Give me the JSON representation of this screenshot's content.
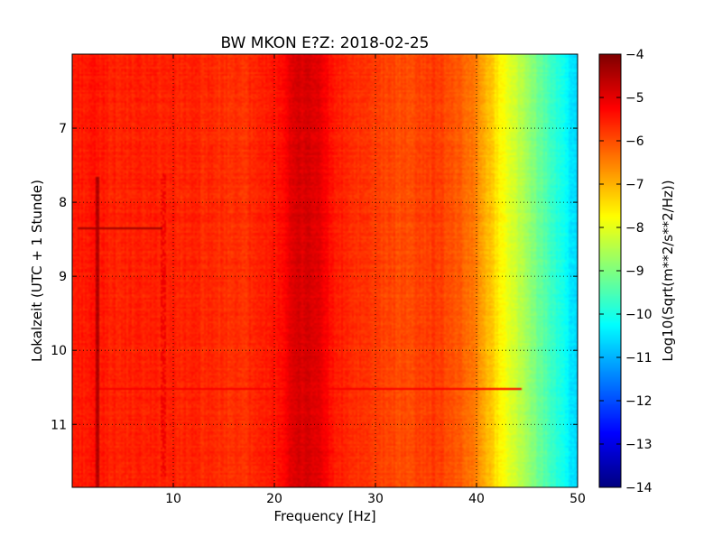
{
  "chart_data": {
    "type": "heatmap",
    "title": "BW MKON E?Z: 2018-02-25",
    "xlabel": "Frequency [Hz]",
    "ylabel": "Lokalzeit (UTC + 1 Stunde)",
    "xlim": [
      0,
      50
    ],
    "ylim": [
      6.0,
      11.85
    ],
    "y_inverted": true,
    "x_ticks": [
      10,
      20,
      30,
      40,
      50
    ],
    "y_ticks": [
      7,
      8,
      9,
      10,
      11
    ],
    "grid": true,
    "colormap": "jet",
    "colorbar": {
      "label": "Log10(Sqrt(m**2/s**2/Hz))",
      "range": [
        -14,
        -4
      ],
      "ticks": [
        -4,
        -5,
        -6,
        -7,
        -8,
        -9,
        -10,
        -11,
        -12,
        -13,
        -14
      ]
    },
    "frequency_profile": {
      "frequency_hz": [
        0,
        2,
        5,
        9,
        12,
        16,
        19,
        21,
        22,
        23,
        24,
        25,
        26,
        28,
        30,
        33,
        36,
        38,
        40,
        41,
        42,
        43,
        44,
        45,
        46,
        47,
        48,
        49,
        50
      ],
      "value": [
        -5.5,
        -5.45,
        -5.6,
        -5.55,
        -5.6,
        -5.75,
        -5.6,
        -5.25,
        -4.95,
        -4.85,
        -4.9,
        -5.2,
        -5.5,
        -5.7,
        -5.85,
        -6.0,
        -5.8,
        -6.1,
        -6.5,
        -7.0,
        -7.5,
        -7.9,
        -8.3,
        -8.7,
        -9.1,
        -9.5,
        -9.9,
        -10.3,
        -10.8
      ]
    },
    "features": [
      {
        "kind": "horizontal_line",
        "time": 8.35,
        "freq_range": [
          0.5,
          9
        ],
        "value": -4.3
      },
      {
        "kind": "vertical_line",
        "freq": 2.5,
        "time_range": [
          7.65,
          11.85
        ],
        "value": -4.5
      },
      {
        "kind": "vertical_band",
        "freq_range": [
          8.8,
          9.3
        ],
        "time_range": [
          7.6,
          11.7
        ],
        "value": -5.1
      },
      {
        "kind": "horizontal_line",
        "time": 10.52,
        "freq_range": [
          2,
          44.5
        ],
        "value": -5.2
      }
    ]
  }
}
